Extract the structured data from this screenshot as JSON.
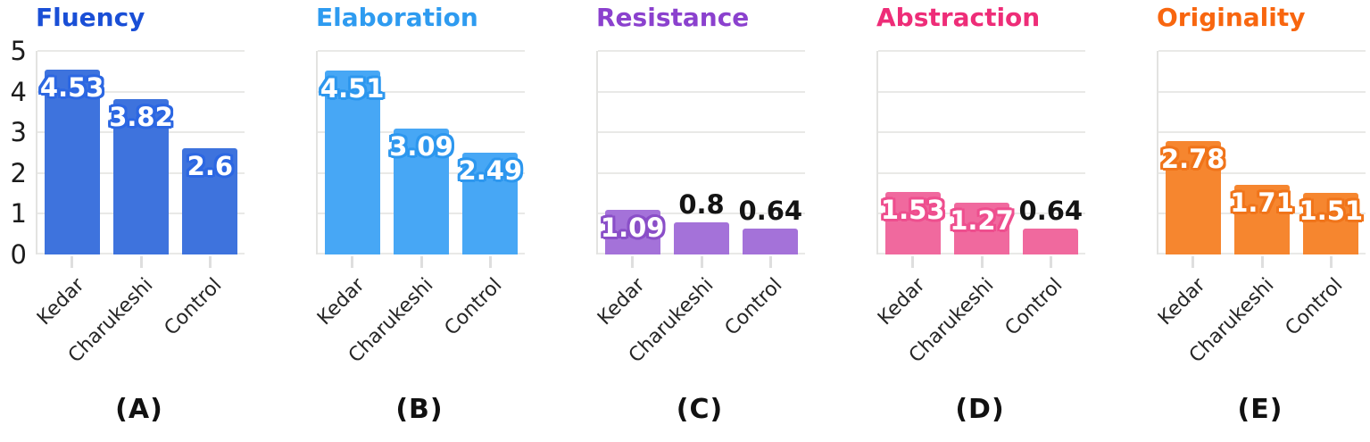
{
  "figure": {
    "background": "#ffffff",
    "grid_color": "#e9e9e7",
    "spine_color": "#e3e3e1",
    "tick_color": "#dedede",
    "axis_text_color": "#262626",
    "y_ticks": [
      "0",
      "1",
      "2",
      "3",
      "4",
      "5"
    ],
    "categories": [
      "Kedar",
      "Charukeshi",
      "Control"
    ]
  },
  "chart_data": [
    {
      "type": "bar",
      "title": "Fluency",
      "panel_letter": "(A)",
      "title_color": "#1a4fd6",
      "bar_color": "#3e73dd",
      "label_outline_color": "#2c67e2",
      "categories": [
        "Kedar",
        "Charukeshi",
        "Control"
      ],
      "values": [
        4.53,
        3.82,
        2.6
      ],
      "value_labels": [
        "4.53",
        "3.82",
        "2.6"
      ],
      "ylim": [
        0,
        5
      ],
      "y_ticks": [
        "0",
        "1",
        "2",
        "3",
        "4",
        "5"
      ],
      "show_y_axis": true,
      "grid": true,
      "legend": false
    },
    {
      "type": "bar",
      "title": "Elaboration",
      "panel_letter": "(B)",
      "title_color": "#2e9bf0",
      "bar_color": "#47a7f5",
      "label_outline_color": "#2d97ee",
      "categories": [
        "Kedar",
        "Charukeshi",
        "Control"
      ],
      "values": [
        4.51,
        3.09,
        2.49
      ],
      "value_labels": [
        "4.51",
        "3.09",
        "2.49"
      ],
      "ylim": [
        0,
        5
      ],
      "show_y_axis": false,
      "grid": true,
      "legend": false
    },
    {
      "type": "bar",
      "title": "Resistance",
      "panel_letter": "(C)",
      "title_color": "#8b41ce",
      "bar_color": "#a472d9",
      "label_outline_color": "#8a4fc8",
      "categories": [
        "Kedar",
        "Charukeshi",
        "Control"
      ],
      "values": [
        1.09,
        0.8,
        0.64
      ],
      "value_labels": [
        "1.09",
        "0.8",
        "0.64"
      ],
      "ylim": [
        0,
        5
      ],
      "show_y_axis": false,
      "grid": true,
      "legend": false
    },
    {
      "type": "bar",
      "title": "Abstraction",
      "panel_letter": "(D)",
      "title_color": "#ee2d78",
      "bar_color": "#f0699e",
      "label_outline_color": "#ee4e8e",
      "categories": [
        "Kedar",
        "Charukeshi",
        "Control"
      ],
      "values": [
        1.53,
        1.27,
        0.64
      ],
      "value_labels": [
        "1.53",
        "1.27",
        "0.64"
      ],
      "ylim": [
        0,
        5
      ],
      "show_y_axis": false,
      "grid": true,
      "legend": false
    },
    {
      "type": "bar",
      "title": "Originality",
      "panel_letter": "(E)",
      "title_color": "#f8660f",
      "bar_color": "#f6862f",
      "label_outline_color": "#f0741a",
      "categories": [
        "Kedar",
        "Charukeshi",
        "Control"
      ],
      "values": [
        2.78,
        1.71,
        1.51
      ],
      "value_labels": [
        "2.78",
        "1.71",
        "1.51"
      ],
      "ylim": [
        0,
        5
      ],
      "show_y_axis": false,
      "grid": true,
      "legend": false
    }
  ]
}
